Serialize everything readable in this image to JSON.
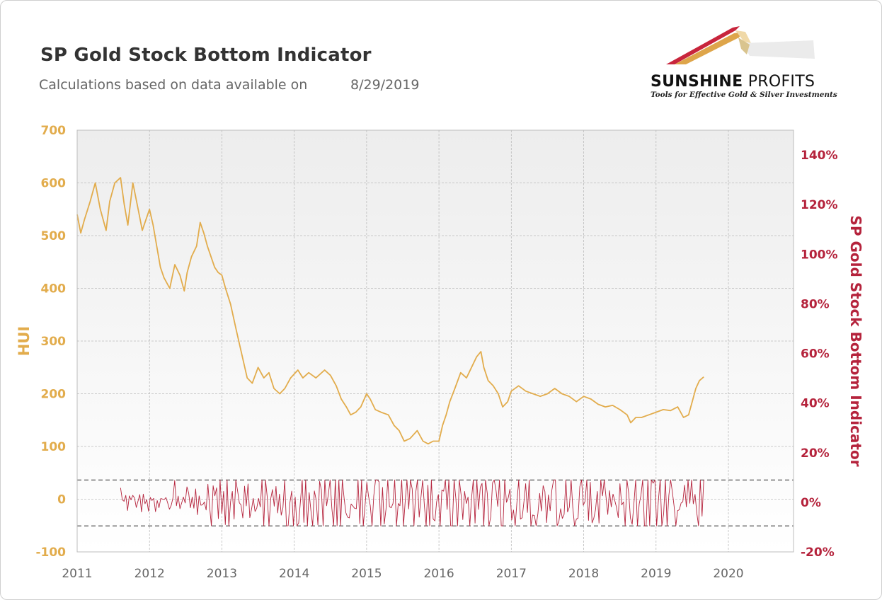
{
  "header": {
    "title": "SP Gold Stock Bottom Indicator",
    "subtitle": "Calculations based on data available on",
    "date": "8/29/2019"
  },
  "logo": {
    "name_bold": "SUNSHINE",
    "name_light": " PROFITS",
    "tagline": "Tools for Effective Gold & Silver Investments"
  },
  "colors": {
    "hui": "#E2AC4C",
    "indicator": "#B5233C",
    "axis_left": "#E2AC4C",
    "axis_right": "#B5233C",
    "grid": "#BBBBBB",
    "threshold": "#222222"
  },
  "chart_data": {
    "type": "line",
    "x_ticks": [
      "2011",
      "2012",
      "2013",
      "2014",
      "2015",
      "2016",
      "2017",
      "2018",
      "2019",
      "2020"
    ],
    "xlim": [
      2011,
      2020.9
    ],
    "left_axis": {
      "label": "HUI",
      "ticks": [
        "-100",
        "0",
        "100",
        "200",
        "300",
        "400",
        "500",
        "600",
        "700"
      ],
      "ylim": [
        -100,
        700
      ]
    },
    "right_axis": {
      "label": "SP Gold Stock Bottom Indicator",
      "ticks": [
        "-20%",
        "0%",
        "20%",
        "40%",
        "60%",
        "80%",
        "100%",
        "120%",
        "140%"
      ],
      "ylim": [
        -20,
        150
      ]
    },
    "grid": true,
    "series": [
      {
        "axis": "left",
        "x": [
          2011.0,
          2011.05,
          2011.1,
          2011.18,
          2011.25,
          2011.32,
          2011.4,
          2011.45,
          2011.52,
          2011.6,
          2011.65,
          2011.7,
          2011.77,
          2011.85,
          2011.9,
          2011.95,
          2012.0,
          2012.05,
          2012.1,
          2012.15,
          2012.2,
          2012.28,
          2012.35,
          2012.42,
          2012.48,
          2012.52,
          2012.58,
          2012.65,
          2012.7,
          2012.75,
          2012.8,
          2012.85,
          2012.9,
          2012.95,
          2013.0,
          2013.05,
          2013.12,
          2013.2,
          2013.25,
          2013.3,
          2013.35,
          2013.42,
          2013.5,
          2013.58,
          2013.65,
          2013.72,
          2013.8,
          2013.87,
          2013.95,
          2014.05,
          2014.12,
          2014.2,
          2014.3,
          2014.42,
          2014.5,
          2014.58,
          2014.65,
          2014.72,
          2014.78,
          2014.85,
          2014.92,
          2015.0,
          2015.05,
          2015.12,
          2015.2,
          2015.3,
          2015.38,
          2015.45,
          2015.52,
          2015.6,
          2015.7,
          2015.78,
          2015.85,
          2015.92,
          2016.0,
          2016.05,
          2016.1,
          2016.15,
          2016.22,
          2016.3,
          2016.38,
          2016.45,
          2016.52,
          2016.58,
          2016.62,
          2016.68,
          2016.75,
          2016.82,
          2016.88,
          2016.95,
          2017.0,
          2017.1,
          2017.2,
          2017.3,
          2017.4,
          2017.5,
          2017.6,
          2017.7,
          2017.8,
          2017.9,
          2018.0,
          2018.1,
          2018.2,
          2018.3,
          2018.4,
          2018.5,
          2018.6,
          2018.65,
          2018.72,
          2018.8,
          2018.9,
          2019.0,
          2019.1,
          2019.2,
          2019.3,
          2019.38,
          2019.45,
          2019.5,
          2019.55,
          2019.6,
          2019.66
        ],
        "values": [
          540,
          505,
          530,
          565,
          600,
          550,
          510,
          565,
          600,
          610,
          560,
          520,
          600,
          545,
          510,
          530,
          550,
          520,
          480,
          440,
          420,
          400,
          445,
          425,
          395,
          430,
          460,
          480,
          525,
          505,
          480,
          460,
          440,
          430,
          425,
          400,
          370,
          320,
          290,
          260,
          230,
          220,
          250,
          230,
          240,
          210,
          200,
          210,
          230,
          245,
          230,
          240,
          230,
          245,
          235,
          215,
          190,
          175,
          160,
          165,
          175,
          200,
          190,
          170,
          165,
          160,
          140,
          130,
          110,
          115,
          130,
          110,
          105,
          110,
          110,
          140,
          160,
          185,
          210,
          240,
          230,
          250,
          270,
          280,
          250,
          225,
          215,
          200,
          175,
          185,
          205,
          215,
          205,
          200,
          195,
          200,
          210,
          200,
          195,
          185,
          195,
          190,
          180,
          175,
          178,
          170,
          160,
          145,
          155,
          155,
          160,
          165,
          170,
          168,
          175,
          155,
          160,
          185,
          210,
          225,
          232
        ]
      },
      {
        "axis": "right",
        "x_start": 2011.6,
        "x_end": 2019.66,
        "upper_threshold": 9,
        "lower_threshold": -9.5,
        "values": [
          5.8,
          1.0,
          0.4,
          2.8,
          -3.3,
          2.6,
          1.0,
          2.8,
          1.7,
          -2.1,
          0.5,
          3.1,
          -3.9,
          3.3,
          -0.6,
          1.1,
          -3.6,
          2.0,
          0.7,
          1.6,
          -3.8,
          0.7,
          -2.2,
          1.5,
          1.3,
          1.1,
          1.9,
          -0.3,
          -2.8,
          -1.2,
          1.7,
          8.8,
          -1.4,
          2.5,
          -2.6,
          -0.2,
          2.1,
          -0.3,
          6.2,
          3.8,
          -2.2,
          2.1,
          -2.4,
          5.4,
          -5.0,
          2.6,
          -1.2,
          -1.0,
          0.1,
          -3.1,
          7.3,
          -1.7,
          -9.5,
          6.7,
          2.6,
          5.8,
          -6.6,
          9.0,
          -4.5,
          4.4,
          -9.0,
          9.0,
          -9.5,
          0.2,
          4.4,
          -6.8,
          9.0,
          4.7,
          -0.2,
          -1.1,
          -6.3,
          6.5,
          -1.5,
          7.4,
          -6.2,
          -2.9,
          1.6,
          -3.7,
          -2.4,
          1.6,
          -1.9,
          9.0,
          -9.5,
          9.0,
          2.2,
          -9.5,
          1.5,
          5.1,
          -1.6,
          6.4,
          -4.3,
          3.3,
          -5.2,
          -2.2,
          8.8,
          -9.5,
          -9.5,
          -0.1,
          4.5,
          -9.5,
          2.1,
          -9.5,
          -8.4,
          0.3,
          9.0,
          -8.1,
          9.0,
          -9.5,
          3.9,
          -3.3,
          -9.5,
          4.6,
          1.0,
          -9.1,
          8.4,
          5.0,
          -9.5,
          9.0,
          -1.4,
          3.3,
          9.0,
          -2.4,
          -9.5,
          9.0,
          -9.5,
          9.0,
          -9.5,
          9.0,
          1.7,
          -4.2,
          -6.0,
          -6.3,
          -0.7,
          -1.5,
          -2.4,
          -2.6,
          9.0,
          -8.6,
          9.0,
          -9.5,
          -1.3,
          8.0,
          2.5,
          -1.4,
          -9.5,
          2.5,
          9.0,
          9.0,
          8.3,
          -9.5,
          6.0,
          -8.8,
          -2.8,
          9.0,
          -1.8,
          -2.2,
          -0.5,
          9.0,
          -9.5,
          -0.5,
          -1.4,
          9.0,
          -9.5,
          0.2,
          9.0,
          -2.7,
          9.0,
          5.4,
          -9.5,
          3.7,
          9.0,
          -6.0,
          1.8,
          8.9,
          -1.7,
          -9.5,
          6.9,
          -9.5,
          9.0,
          -6.7,
          -7.5,
          0.2,
          3.1,
          -9.5,
          4.9,
          4.5,
          9.0,
          -2.9,
          9.0,
          -9.5,
          -9.5,
          8.9,
          1.5,
          -9.5,
          9.0,
          3.0,
          -7.0,
          4.4,
          -0.5,
          2.1,
          -9.5,
          1.8,
          9.0,
          -8.4,
          9.0,
          -2.9,
          6.0,
          7.6,
          -9.5,
          9.0,
          3.5,
          -9.5,
          -5.8,
          7.8,
          9.0,
          4.9,
          -1.7,
          9.0,
          -9.5,
          -9.5,
          9.0,
          -0.0,
          1.8,
          5.3,
          -7.1,
          -3.1,
          -9.5,
          0.1,
          9.0,
          -6.8,
          -6.2,
          0.3,
          7.5,
          -4.1,
          9.0,
          -9.5,
          -5.1,
          -5.4,
          -9.5,
          -4.5,
          3.6,
          -3.5,
          6.7,
          4.3,
          -8.2,
          3.0,
          -3.4,
          4.9,
          9.0,
          9.0,
          -9.5,
          -7.8,
          -2.6,
          -6.5,
          -4.9,
          9.0,
          -3.9,
          -2.0,
          9.0,
          -2.2,
          -9.5,
          -6.8,
          -6.4,
          6.3,
          9.0,
          -1.2,
          0.4,
          9.0,
          -7.3,
          8.1,
          -8.3,
          -6.5,
          -3.0,
          4.4,
          -8.4,
          9.0,
          2.6,
          9.0,
          2.2,
          -4.9,
          4.7,
          -1.9,
          3.3,
          0.8,
          -2.0,
          -6.2,
          7.5,
          -1.1,
          0.1,
          -9.5,
          9.0,
          3.6,
          -6.4,
          -8.9,
          -0.2,
          9.0,
          -9.5,
          -0.7,
          2.7,
          9.0,
          -9.5,
          -9.5,
          9.0,
          -9.5,
          9.0,
          7.7,
          9.0,
          -9.5,
          0.7,
          9.0,
          -9.5,
          -4.7,
          9.0,
          -9.5,
          2.8,
          9.0,
          4.3,
          -1.6,
          -9.5,
          -3.4,
          -3.0,
          -0.3,
          0.2,
          6.9,
          -1.9,
          9.0,
          -0.4,
          9.0,
          -0.6,
          3.2,
          -4.4,
          -9.5,
          9.0,
          -5.6,
          9.0
        ]
      }
    ]
  }
}
